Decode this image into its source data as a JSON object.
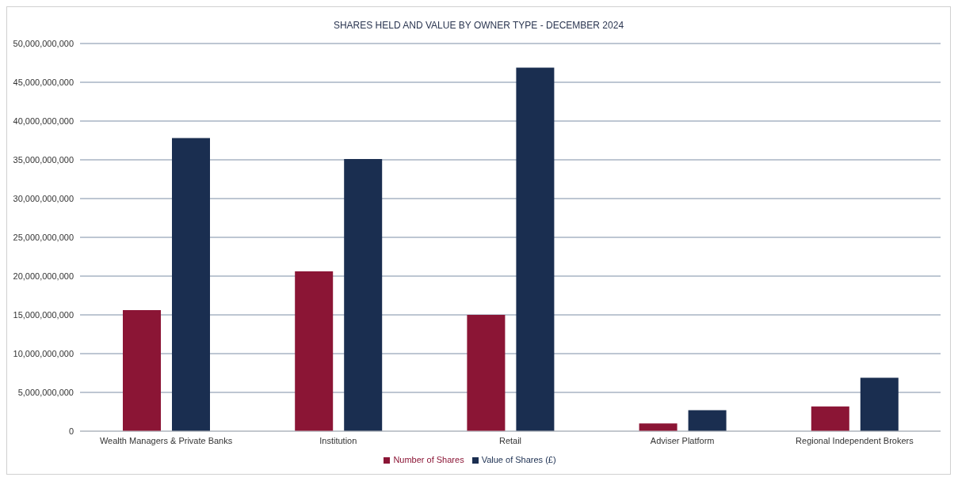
{
  "chart_data": {
    "type": "bar",
    "title": "SHARES HELD AND VALUE BY OWNER TYPE - DECEMBER 2024",
    "categories": [
      "Wealth Managers & Private Banks",
      "Institution",
      "Retail",
      "Adviser Platform",
      "Regional Independent Brokers"
    ],
    "series": [
      {
        "name": "Number of Shares",
        "color": "#8b1535",
        "values": [
          15600000000,
          20600000000,
          15000000000,
          1000000000,
          3200000000
        ]
      },
      {
        "name": "Value of Shares (£)",
        "color": "#1a2e50",
        "values": [
          37800000000,
          35100000000,
          46900000000,
          2700000000,
          6900000000
        ]
      }
    ],
    "ylim": [
      0,
      50000000000
    ],
    "yticks": [
      0,
      {
        "value": 5000000000,
        "label": "5,000,000,000"
      },
      {
        "value": 10000000000,
        "label": "10,000,000,000"
      },
      {
        "value": 15000000000,
        "label": "15,000,000,000"
      },
      {
        "value": 20000000000,
        "label": "20,000,000,000"
      },
      {
        "value": 25000000000,
        "label": "25,000,000,000"
      },
      {
        "value": 30000000000,
        "label": "30,000,000,000"
      },
      {
        "value": 35000000000,
        "label": "35,000,000,000"
      },
      {
        "value": 40000000000,
        "label": "40,000,000,000"
      },
      {
        "value": 45000000000,
        "label": "45,000,000,000"
      },
      {
        "value": 50000000000,
        "label": "50,000,000,000"
      }
    ],
    "grid": "y",
    "legend": "bottom"
  }
}
